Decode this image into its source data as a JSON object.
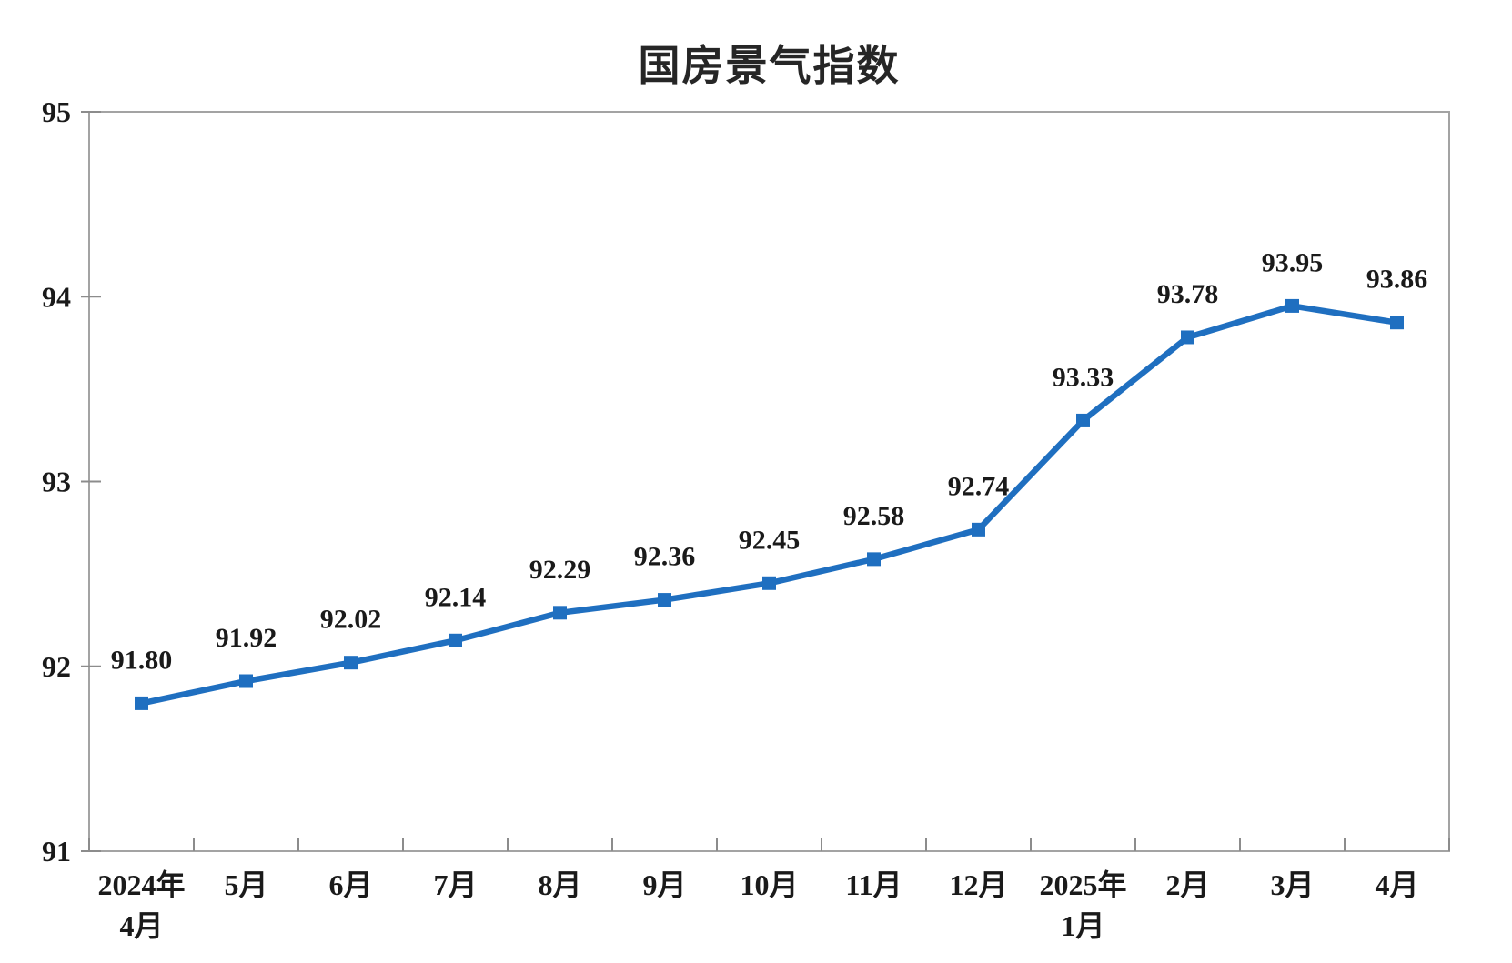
{
  "chart_data": {
    "type": "line",
    "title": "国房景气指数",
    "categories": [
      [
        "2024年",
        "4月"
      ],
      [
        "5月"
      ],
      [
        "6月"
      ],
      [
        "7月"
      ],
      [
        "8月"
      ],
      [
        "9月"
      ],
      [
        "10月"
      ],
      [
        "11月"
      ],
      [
        "12月"
      ],
      [
        "2025年",
        "1月"
      ],
      [
        "2月"
      ],
      [
        "3月"
      ],
      [
        "4月"
      ]
    ],
    "series": [
      {
        "name": "国房景气指数",
        "color": "#1f6fc0",
        "values": [
          91.8,
          91.92,
          92.02,
          92.14,
          92.29,
          92.36,
          92.45,
          92.58,
          92.74,
          93.33,
          93.78,
          93.95,
          93.86
        ],
        "point_labels": [
          "91.80",
          "91.92",
          "92.02",
          "92.14",
          "92.29",
          "92.36",
          "92.45",
          "92.58",
          "92.74",
          "93.33",
          "93.78",
          "93.95",
          "93.86"
        ]
      }
    ],
    "ylim": [
      91,
      95
    ],
    "yticks": [
      91,
      92,
      93,
      94,
      95
    ],
    "grid": false,
    "legend": "none",
    "marker": "square",
    "axis_color": "#a3a3a3",
    "tick_color": "#8c8c8c",
    "text_color": "#1a1a1a"
  }
}
